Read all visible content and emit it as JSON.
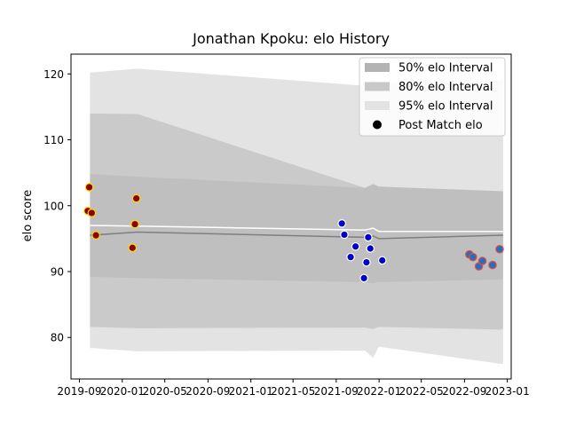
{
  "chart_data": {
    "type": "scatter",
    "title": "Jonathan Kpoku: elo History",
    "xlabel": "",
    "ylabel": "elo score",
    "x_range": [
      "2019-08-08",
      "2023-01-12"
    ],
    "ylim": [
      73.7,
      123.0
    ],
    "grid": false,
    "legend_position": "top-right",
    "x_ticks": [
      {
        "date": "2019-09-01",
        "label": "2019-09"
      },
      {
        "date": "2020-01-01",
        "label": "2020-01"
      },
      {
        "date": "2020-05-01",
        "label": "2020-05"
      },
      {
        "date": "2020-09-01",
        "label": "2020-09"
      },
      {
        "date": "2021-01-01",
        "label": "2021-01"
      },
      {
        "date": "2021-05-01",
        "label": "2021-05"
      },
      {
        "date": "2021-09-01",
        "label": "2021-09"
      },
      {
        "date": "2022-01-01",
        "label": "2022-01"
      },
      {
        "date": "2022-05-01",
        "label": "2022-05"
      },
      {
        "date": "2022-09-01",
        "label": "2022-09"
      },
      {
        "date": "2023-01-01",
        "label": "2023-01"
      }
    ],
    "y_ticks": [
      80,
      90,
      100,
      110,
      120
    ],
    "legend": [
      {
        "label": "50% elo Interval",
        "kind": "band",
        "color": "#b3b3b3"
      },
      {
        "label": "80% elo Interval",
        "kind": "band",
        "color": "#c8c8c8"
      },
      {
        "label": "95% elo Interval",
        "kind": "band",
        "color": "#e3e3e3"
      },
      {
        "label": "Post Match elo",
        "kind": "marker",
        "color": "#000000"
      }
    ],
    "band_dates": [
      "2019-10-01",
      "2020-02-13",
      "2021-11-22",
      "2021-12-15",
      "2021-12-31",
      "2022-12-12",
      "2022-12-20"
    ],
    "bands": {
      "p95": {
        "upper": [
          120.2,
          120.8,
          118.2,
          119.1,
          118.6,
          119.0,
          119.0
        ],
        "lower": [
          78.4,
          77.9,
          78.0,
          76.9,
          78.6,
          76.0,
          76.0
        ]
      },
      "p80": {
        "upper": [
          114.0,
          113.9,
          102.7,
          103.3,
          102.9,
          102.2,
          102.2
        ],
        "lower": [
          81.6,
          81.4,
          81.5,
          81.3,
          81.6,
          81.2,
          81.3
        ]
      },
      "p50": {
        "upper": [
          104.8,
          104.4,
          102.7,
          103.3,
          102.9,
          102.2,
          102.2
        ],
        "lower": [
          89.2,
          89.0,
          88.4,
          88.2,
          88.4,
          88.8,
          88.9
        ]
      }
    },
    "lines": {
      "mean": {
        "color": "#ffffff",
        "values": [
          97.0,
          96.9,
          96.3,
          96.6,
          96.1,
          96.1,
          96.1
        ]
      },
      "median": {
        "color": "#7f7f7f",
        "values": [
          95.5,
          96.0,
          95.2,
          95.4,
          95.0,
          95.5,
          95.5
        ]
      }
    },
    "series": [
      {
        "fill": "#8b0000",
        "edge": "#ffd700",
        "points": [
          {
            "x": "2019-09-25",
            "y": 99.2
          },
          {
            "x": "2019-09-29",
            "y": 102.8
          },
          {
            "x": "2019-10-06",
            "y": 98.9
          },
          {
            "x": "2019-10-18",
            "y": 95.5
          },
          {
            "x": "2020-01-30",
            "y": 93.6
          },
          {
            "x": "2020-02-06",
            "y": 97.2
          },
          {
            "x": "2020-02-10",
            "y": 101.1
          }
        ]
      },
      {
        "fill": "#0000cd",
        "edge": "#ffffff",
        "points": [
          {
            "x": "2021-09-17",
            "y": 97.3
          },
          {
            "x": "2021-09-24",
            "y": 95.6
          },
          {
            "x": "2021-10-12",
            "y": 92.2
          },
          {
            "x": "2021-10-26",
            "y": 93.8
          },
          {
            "x": "2021-11-19",
            "y": 89.0
          },
          {
            "x": "2021-11-26",
            "y": 91.4
          },
          {
            "x": "2021-12-01",
            "y": 95.2
          },
          {
            "x": "2021-12-07",
            "y": 93.5
          },
          {
            "x": "2022-01-10",
            "y": 91.7
          }
        ]
      },
      {
        "fill": "#2d6db5",
        "edge": "#dd5050",
        "points": [
          {
            "x": "2022-09-15",
            "y": 92.6
          },
          {
            "x": "2022-09-25",
            "y": 92.2
          },
          {
            "x": "2022-10-12",
            "y": 90.8
          },
          {
            "x": "2022-10-22",
            "y": 91.6
          },
          {
            "x": "2022-11-20",
            "y": 91.0
          },
          {
            "x": "2022-12-10",
            "y": 93.4
          }
        ]
      }
    ]
  }
}
